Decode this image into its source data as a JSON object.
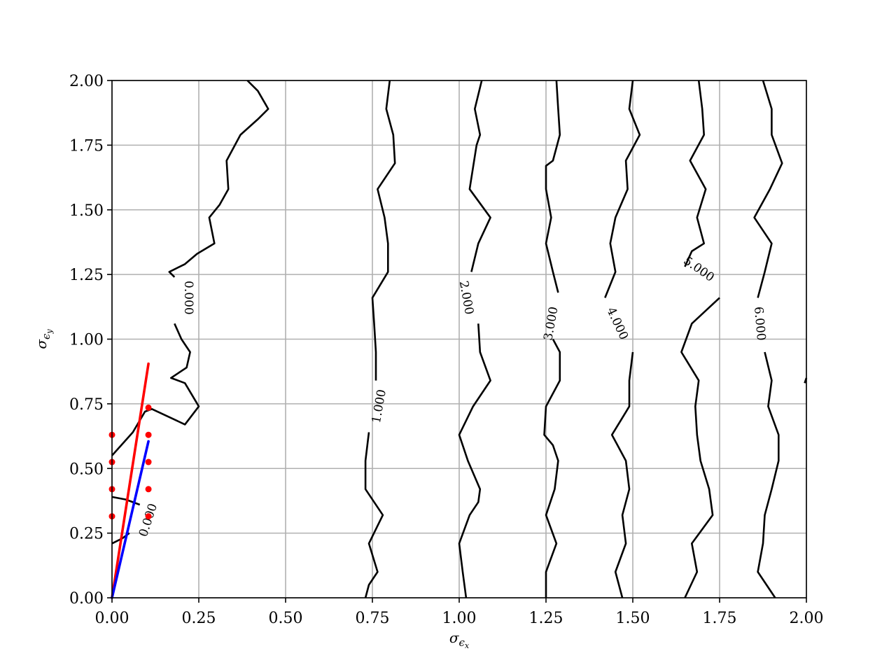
{
  "chart_data": {
    "type": "contour",
    "xlim": [
      0,
      2
    ],
    "ylim": [
      0,
      2
    ],
    "x_ticks": [
      0,
      0.25,
      0.5,
      0.75,
      1.0,
      1.25,
      1.5,
      1.75,
      2.0
    ],
    "y_ticks": [
      0,
      0.25,
      0.5,
      0.75,
      1.0,
      1.25,
      1.5,
      1.75,
      2.0
    ],
    "x_tick_labels": [
      "0.00",
      "0.25",
      "0.50",
      "0.75",
      "1.00",
      "1.25",
      "1.50",
      "1.75",
      "2.00"
    ],
    "y_tick_labels": [
      "0.00",
      "0.25",
      "0.50",
      "0.75",
      "1.00",
      "1.25",
      "1.50",
      "1.75",
      "2.00"
    ],
    "xlabel": {
      "base": "σ",
      "sub": "ϵ",
      "subsub": "x"
    },
    "ylabel": {
      "base": "σ",
      "sub": "ϵ",
      "subsub": "y"
    },
    "grid": true,
    "contour_color": "#000000",
    "contours": [
      {
        "level": 0.0,
        "label": "0.000",
        "label_at": [
          0.22,
          1.16
        ],
        "label_rot": 90,
        "points": [
          [
            0.39,
            2.0
          ],
          [
            0.42,
            1.96
          ],
          [
            0.45,
            1.89
          ],
          [
            0.42,
            1.85
          ],
          [
            0.37,
            1.79
          ],
          [
            0.33,
            1.69
          ],
          [
            0.335,
            1.58
          ],
          [
            0.31,
            1.52
          ],
          [
            0.28,
            1.47
          ],
          [
            0.295,
            1.37
          ],
          [
            0.245,
            1.33
          ],
          [
            0.21,
            1.29
          ],
          [
            0.165,
            1.26
          ],
          [
            0.18,
            1.24
          ],
          null,
          [
            0.18,
            1.06
          ],
          [
            0.2,
            1.0
          ],
          [
            0.225,
            0.95
          ],
          [
            0.215,
            0.89
          ],
          [
            0.17,
            0.85
          ],
          [
            0.21,
            0.83
          ],
          [
            0.25,
            0.74
          ],
          [
            0.21,
            0.67
          ],
          [
            0.115,
            0.73
          ],
          [
            0.095,
            0.72
          ],
          [
            0.06,
            0.64
          ],
          [
            0.0,
            0.55
          ]
        ]
      },
      {
        "level": 0.0,
        "label": "0.000",
        "label_at": [
          0.105,
          0.3
        ],
        "label_rot": -72,
        "points": [
          [
            0.0,
            0.39
          ],
          [
            0.04,
            0.38
          ],
          [
            0.08,
            0.36
          ],
          null,
          [
            0.05,
            0.25
          ],
          [
            0.03,
            0.23
          ],
          [
            0.0,
            0.21
          ]
        ]
      },
      {
        "level": 1.0,
        "label": "1.000",
        "label_at": [
          0.77,
          0.74
        ],
        "label_rot": -80,
        "points": [
          [
            0.8,
            2.0
          ],
          [
            0.79,
            1.89
          ],
          [
            0.81,
            1.79
          ],
          [
            0.815,
            1.68
          ],
          [
            0.765,
            1.58
          ],
          [
            0.785,
            1.47
          ],
          [
            0.795,
            1.37
          ],
          [
            0.795,
            1.26
          ],
          [
            0.75,
            1.16
          ],
          [
            0.755,
            1.06
          ],
          [
            0.76,
            0.95
          ],
          [
            0.76,
            0.84
          ],
          null,
          [
            0.74,
            0.64
          ],
          [
            0.73,
            0.53
          ],
          [
            0.73,
            0.42
          ],
          [
            0.78,
            0.32
          ],
          [
            0.74,
            0.21
          ],
          [
            0.765,
            0.1
          ],
          [
            0.74,
            0.05
          ],
          [
            0.73,
            0.0
          ]
        ]
      },
      {
        "level": 2.0,
        "label": "2.000",
        "label_at": [
          1.02,
          1.16
        ],
        "label_rot": 80,
        "points": [
          [
            1.065,
            2.0
          ],
          [
            1.045,
            1.89
          ],
          [
            1.06,
            1.79
          ],
          [
            1.05,
            1.75
          ],
          [
            1.03,
            1.58
          ],
          [
            1.09,
            1.47
          ],
          [
            1.055,
            1.37
          ],
          [
            1.035,
            1.26
          ],
          null,
          [
            1.055,
            1.06
          ],
          [
            1.06,
            0.95
          ],
          [
            1.09,
            0.84
          ],
          [
            1.04,
            0.74
          ],
          [
            1.0,
            0.63
          ],
          [
            1.025,
            0.53
          ],
          [
            1.06,
            0.42
          ],
          [
            1.055,
            0.37
          ],
          [
            1.03,
            0.32
          ],
          [
            1.0,
            0.21
          ],
          [
            1.01,
            0.1
          ],
          [
            1.02,
            0.0
          ]
        ]
      },
      {
        "level": 3.0,
        "label": "3.000",
        "label_at": [
          1.265,
          1.06
        ],
        "label_rot": -80,
        "points": [
          [
            1.28,
            2.0
          ],
          [
            1.285,
            1.89
          ],
          [
            1.29,
            1.79
          ],
          [
            1.27,
            1.69
          ],
          [
            1.25,
            1.67
          ],
          [
            1.25,
            1.58
          ],
          [
            1.265,
            1.47
          ],
          [
            1.25,
            1.37
          ],
          [
            1.27,
            1.26
          ],
          [
            1.285,
            1.18
          ],
          null,
          [
            1.27,
            1.0
          ],
          [
            1.29,
            0.95
          ],
          [
            1.29,
            0.84
          ],
          [
            1.25,
            0.74
          ],
          [
            1.245,
            0.63
          ],
          [
            1.27,
            0.59
          ],
          [
            1.285,
            0.53
          ],
          [
            1.275,
            0.42
          ],
          [
            1.25,
            0.32
          ],
          [
            1.28,
            0.21
          ],
          [
            1.25,
            0.1
          ],
          [
            1.25,
            0.0
          ]
        ]
      },
      {
        "level": 4.0,
        "label": "4.000",
        "label_at": [
          1.455,
          1.06
        ],
        "label_rot": 65,
        "points": [
          [
            1.5,
            2.0
          ],
          [
            1.49,
            1.89
          ],
          [
            1.52,
            1.79
          ],
          [
            1.48,
            1.69
          ],
          [
            1.485,
            1.58
          ],
          [
            1.45,
            1.47
          ],
          [
            1.435,
            1.37
          ],
          [
            1.45,
            1.26
          ],
          [
            1.42,
            1.16
          ],
          null,
          [
            1.5,
            0.95
          ],
          [
            1.49,
            0.84
          ],
          [
            1.49,
            0.74
          ],
          [
            1.44,
            0.63
          ],
          [
            1.48,
            0.53
          ],
          [
            1.49,
            0.42
          ],
          [
            1.47,
            0.32
          ],
          [
            1.48,
            0.21
          ],
          [
            1.45,
            0.1
          ],
          [
            1.47,
            0.0
          ]
        ]
      },
      {
        "level": 5.0,
        "label": "5.000",
        "label_at": [
          1.69,
          1.27
        ],
        "label_rot": 35,
        "points": [
          [
            1.69,
            2.0
          ],
          [
            1.7,
            1.89
          ],
          [
            1.705,
            1.79
          ],
          [
            1.665,
            1.69
          ],
          [
            1.71,
            1.58
          ],
          [
            1.685,
            1.47
          ],
          [
            1.705,
            1.37
          ],
          [
            1.67,
            1.34
          ],
          [
            1.65,
            1.28
          ],
          null,
          [
            1.75,
            1.16
          ],
          [
            1.67,
            1.06
          ],
          [
            1.64,
            0.95
          ],
          [
            1.69,
            0.84
          ],
          [
            1.68,
            0.74
          ],
          [
            1.685,
            0.63
          ],
          [
            1.695,
            0.53
          ],
          [
            1.72,
            0.42
          ],
          [
            1.73,
            0.32
          ],
          [
            1.67,
            0.21
          ],
          [
            1.685,
            0.1
          ],
          [
            1.65,
            0.0
          ]
        ]
      },
      {
        "level": 6.0,
        "label": "6.000",
        "label_at": [
          1.865,
          1.06
        ],
        "label_rot": 85,
        "points": [
          [
            1.875,
            2.0
          ],
          [
            1.9,
            1.89
          ],
          [
            1.9,
            1.79
          ],
          [
            1.93,
            1.68
          ],
          [
            1.895,
            1.58
          ],
          [
            1.85,
            1.47
          ],
          [
            1.9,
            1.37
          ],
          [
            1.88,
            1.26
          ],
          [
            1.86,
            1.16
          ],
          null,
          [
            1.88,
            0.95
          ],
          [
            1.9,
            0.84
          ],
          [
            1.89,
            0.74
          ],
          [
            1.92,
            0.63
          ],
          [
            1.92,
            0.53
          ],
          [
            1.9,
            0.42
          ],
          [
            1.88,
            0.32
          ],
          [
            1.875,
            0.21
          ],
          [
            1.86,
            0.1
          ],
          [
            1.91,
            0.0
          ]
        ]
      },
      {
        "level": 6.0,
        "label": "",
        "points": [
          [
            1.995,
            0.83
          ],
          [
            2.0,
            0.85
          ]
        ]
      }
    ],
    "red_line": {
      "color": "#ff0000",
      "from": [
        0.0,
        0.0
      ],
      "to": [
        0.105,
        0.905
      ]
    },
    "blue_line": {
      "color": "#0000ff",
      "from": [
        0.0,
        0.0
      ],
      "to": [
        0.105,
        0.605
      ]
    },
    "red_points": {
      "color": "#ff0000",
      "points": [
        [
          0.0,
          0.63
        ],
        [
          0.0,
          0.525
        ],
        [
          0.0,
          0.42
        ],
        [
          0.0,
          0.315
        ],
        [
          0.105,
          0.735
        ],
        [
          0.105,
          0.63
        ],
        [
          0.105,
          0.525
        ],
        [
          0.105,
          0.42
        ],
        [
          0.105,
          0.315
        ]
      ]
    }
  }
}
